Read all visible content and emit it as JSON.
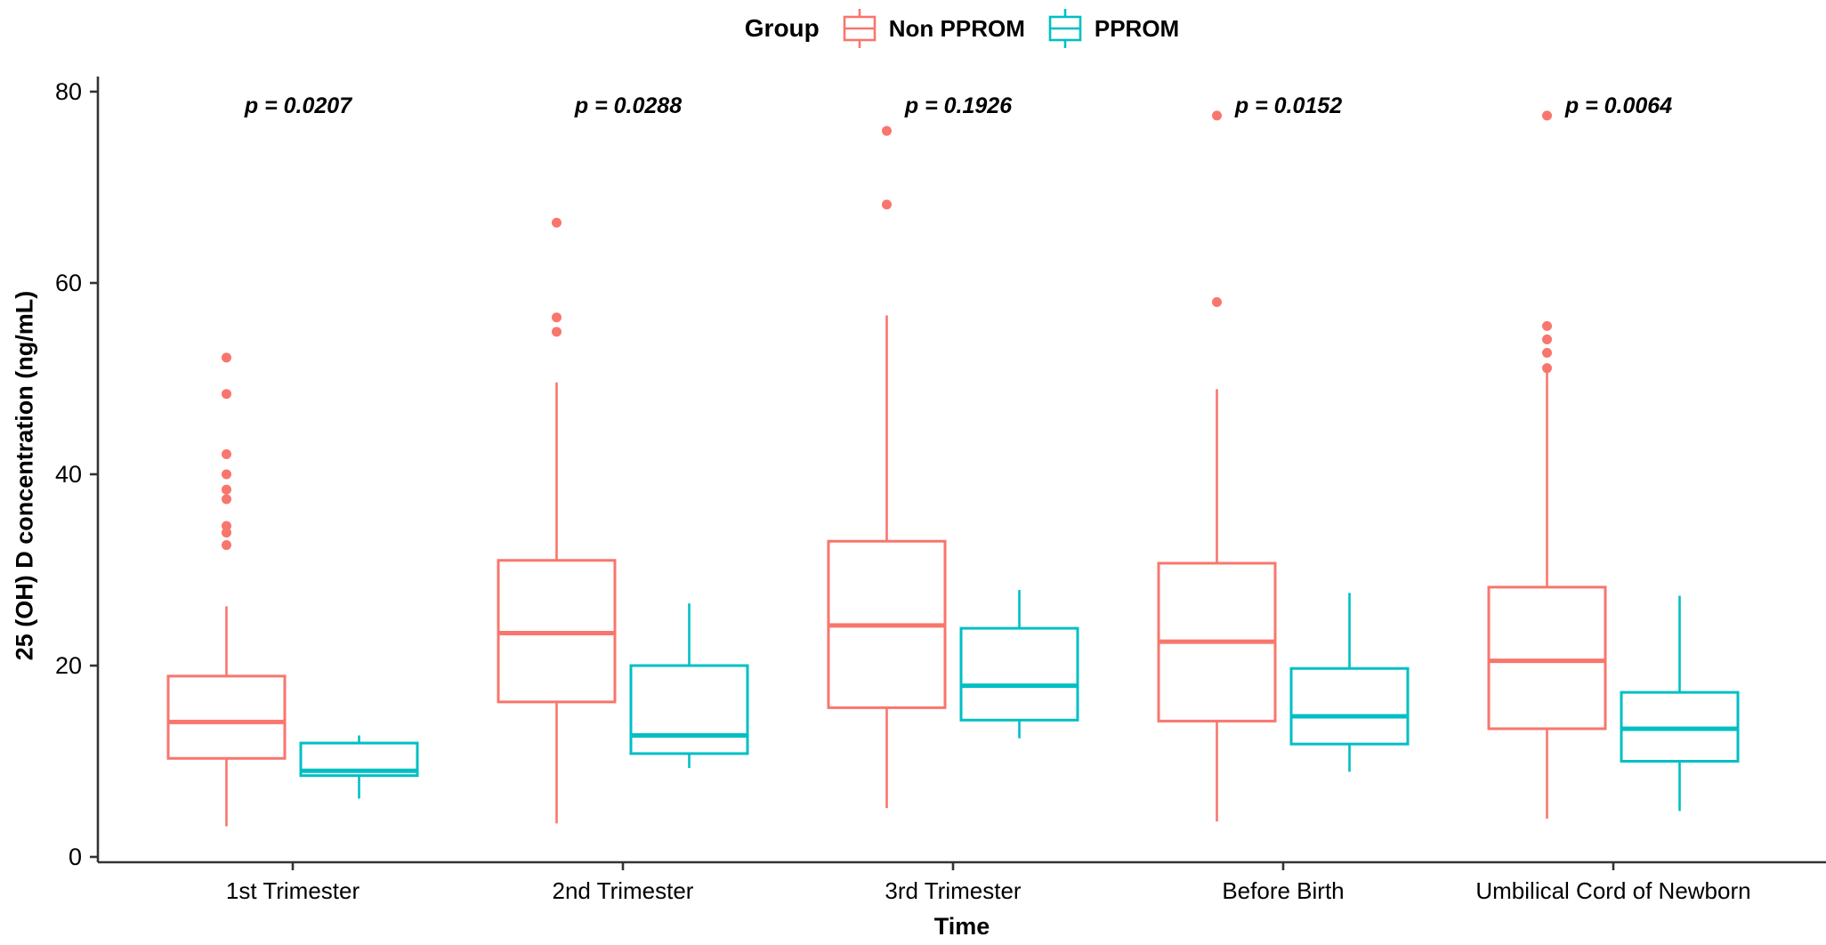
{
  "legend": {
    "title": "Group",
    "items": [
      {
        "label": "Non PPROM",
        "color": "#F8766D"
      },
      {
        "label": "PPROM",
        "color": "#00BFC4"
      }
    ]
  },
  "axes": {
    "y": {
      "title": "25 (OH) D concentration (ng/mL)",
      "ticks": [
        0,
        20,
        40,
        60,
        80
      ]
    },
    "x": {
      "title": "Time"
    }
  },
  "chart_data": {
    "type": "boxplot",
    "title": "",
    "xlabel": "Time",
    "ylabel": "25 (OH) D concentration (ng/mL)",
    "ylim": [
      0,
      80
    ],
    "y_ticks": [
      0,
      20,
      40,
      60,
      80
    ],
    "legend_position": "top",
    "grid": false,
    "categories": [
      "1st Trimester",
      "2nd Trimester",
      "3rd Trimester",
      "Before Birth",
      "Umbilical Cord of Newborn"
    ],
    "annotations": [
      {
        "label": "p = 0.0207"
      },
      {
        "label": "p = 0.0288"
      },
      {
        "label": "p = 0.1926"
      },
      {
        "label": "p = 0.0152"
      },
      {
        "label": "p = 0.0064"
      }
    ],
    "series": [
      {
        "name": "Non PPROM",
        "color": "#F8766D",
        "boxes": [
          {
            "whisker_low": 3.2,
            "q1": 10.3,
            "median": 14.1,
            "q3": 18.9,
            "whisker_high": 26.2,
            "outliers": [
              52.2,
              48.4,
              42.1,
              40.0,
              38.4,
              37.4,
              34.6,
              33.9,
              32.6
            ]
          },
          {
            "whisker_low": 3.5,
            "q1": 16.2,
            "median": 23.4,
            "q3": 31.0,
            "whisker_high": 49.6,
            "outliers": [
              66.3,
              56.4,
              54.9
            ]
          },
          {
            "whisker_low": 5.1,
            "q1": 15.6,
            "median": 24.2,
            "q3": 33.0,
            "whisker_high": 56.6,
            "outliers": [
              75.9,
              68.2
            ]
          },
          {
            "whisker_low": 3.7,
            "q1": 14.2,
            "median": 22.5,
            "q3": 30.7,
            "whisker_high": 48.9,
            "outliers": [
              77.5,
              58.0
            ]
          },
          {
            "whisker_low": 4.0,
            "q1": 13.4,
            "median": 20.5,
            "q3": 28.2,
            "whisker_high": 51.0,
            "outliers": [
              77.5,
              55.5,
              54.1,
              52.7,
              51.1
            ]
          }
        ]
      },
      {
        "name": "PPROM",
        "color": "#00BFC4",
        "boxes": [
          {
            "whisker_low": 6.1,
            "q1": 8.5,
            "median": 9.0,
            "q3": 11.9,
            "whisker_high": 12.7,
            "outliers": []
          },
          {
            "whisker_low": 9.3,
            "q1": 10.8,
            "median": 12.7,
            "q3": 20.0,
            "whisker_high": 26.5,
            "outliers": []
          },
          {
            "whisker_low": 12.4,
            "q1": 14.3,
            "median": 17.9,
            "q3": 23.9,
            "whisker_high": 27.9,
            "outliers": []
          },
          {
            "whisker_low": 8.9,
            "q1": 11.8,
            "median": 14.7,
            "q3": 19.7,
            "whisker_high": 27.6,
            "outliers": []
          },
          {
            "whisker_low": 4.8,
            "q1": 10.0,
            "median": 13.4,
            "q3": 17.2,
            "whisker_high": 27.3,
            "outliers": []
          }
        ]
      }
    ]
  },
  "colors": {
    "axis": "#333333",
    "text": "#000000",
    "non_pprom": "#F8766D",
    "pprom": "#00BFC4"
  }
}
